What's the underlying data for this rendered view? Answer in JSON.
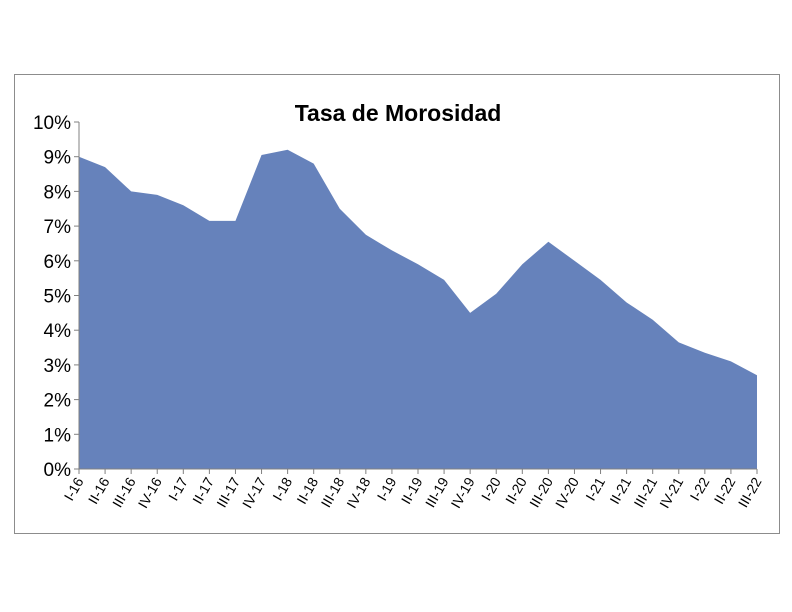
{
  "chart_data": {
    "type": "area",
    "title": "Tasa de Morosidad",
    "xlabel": "",
    "ylabel": "",
    "ylim": [
      0,
      10
    ],
    "y_tick_labels": [
      "0%",
      "1%",
      "2%",
      "3%",
      "4%",
      "5%",
      "6%",
      "7%",
      "8%",
      "9%",
      "10%"
    ],
    "categories": [
      "I-16",
      "II-16",
      "III-16",
      "IV-16",
      "I-17",
      "II-17",
      "III-17",
      "IV-17",
      "I-18",
      "II-18",
      "III-18",
      "IV-18",
      "I-19",
      "II-19",
      "III-19",
      "IV-19",
      "I-20",
      "II-20",
      "III-20",
      "IV-20",
      "I-21",
      "II-21",
      "III-21",
      "IV-21",
      "I-22",
      "II-22",
      "III-22"
    ],
    "series": [
      {
        "values": [
          9.0,
          8.7,
          8.0,
          7.9,
          7.6,
          7.15,
          7.15,
          9.05,
          9.2,
          8.8,
          7.5,
          6.75,
          6.3,
          5.9,
          5.45,
          4.5,
          5.05,
          5.9,
          6.55,
          6.0,
          5.45,
          4.8,
          4.3,
          3.65,
          3.35,
          3.1,
          2.7
        ],
        "color": "#6682bb"
      }
    ],
    "grid": false,
    "legend": "none"
  }
}
